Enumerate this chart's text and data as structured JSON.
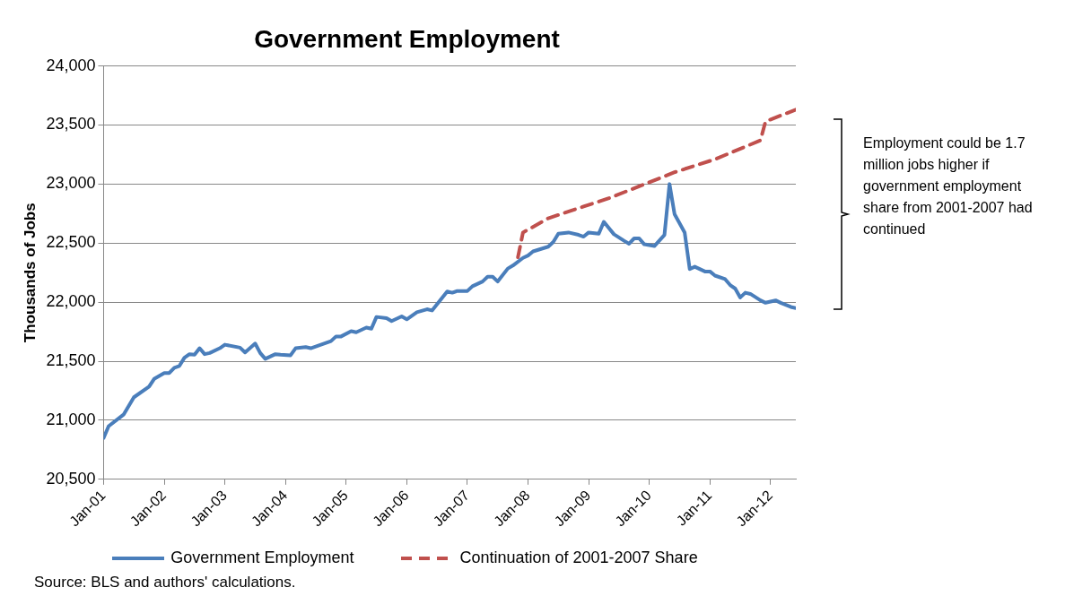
{
  "chart_data": {
    "type": "line",
    "title": "Government Employment",
    "ylabel": "Thousands of Jobs",
    "ylim": [
      20500,
      24000
    ],
    "yticks": [
      {
        "value": 20500,
        "label": "20,500"
      },
      {
        "value": 21000,
        "label": "21,000"
      },
      {
        "value": 21500,
        "label": "21,500"
      },
      {
        "value": 22000,
        "label": "22,000"
      },
      {
        "value": 22500,
        "label": "22,500"
      },
      {
        "value": 23000,
        "label": "23,000"
      },
      {
        "value": 23500,
        "label": "23,500"
      },
      {
        "value": 24000,
        "label": "24,000"
      }
    ],
    "xlim": [
      "2001-01",
      "2012-06"
    ],
    "xticks": [
      {
        "value": "2001-01",
        "label": "Jan-01"
      },
      {
        "value": "2002-01",
        "label": "Jan-02"
      },
      {
        "value": "2003-01",
        "label": "Jan-03"
      },
      {
        "value": "2004-01",
        "label": "Jan-04"
      },
      {
        "value": "2005-01",
        "label": "Jan-05"
      },
      {
        "value": "2006-01",
        "label": "Jan-06"
      },
      {
        "value": "2007-01",
        "label": "Jan-07"
      },
      {
        "value": "2008-01",
        "label": "Jan-08"
      },
      {
        "value": "2009-01",
        "label": "Jan-09"
      },
      {
        "value": "2010-01",
        "label": "Jan-10"
      },
      {
        "value": "2011-01",
        "label": "Jan-11"
      },
      {
        "value": "2012-01",
        "label": "Jan-12"
      }
    ],
    "grid": "y",
    "legend": "bottom",
    "marker": "none",
    "series": [
      {
        "name": "Government Employment",
        "color": "#4a7ebb",
        "line_style": "solid",
        "x": [
          "2001-01",
          "2001-02",
          "2001-05",
          "2001-07",
          "2001-10",
          "2001-11",
          "2002-01",
          "2002-02",
          "2002-03",
          "2002-04",
          "2002-05",
          "2002-06",
          "2002-07",
          "2002-08",
          "2002-09",
          "2002-10",
          "2002-12",
          "2003-01",
          "2003-04",
          "2003-05",
          "2003-07",
          "2003-08",
          "2003-09",
          "2003-11",
          "2003-12",
          "2004-02",
          "2004-03",
          "2004-05",
          "2004-06",
          "2004-08",
          "2004-10",
          "2004-11",
          "2004-12",
          "2005-02",
          "2005-03",
          "2005-05",
          "2005-06",
          "2005-07",
          "2005-09",
          "2005-10",
          "2005-12",
          "2006-01",
          "2006-03",
          "2006-05",
          "2006-06",
          "2006-09",
          "2006-10",
          "2006-11",
          "2007-01",
          "2007-02",
          "2007-04",
          "2007-05",
          "2007-06",
          "2007-07",
          "2007-09",
          "2007-10",
          "2007-12",
          "2008-01",
          "2008-02",
          "2008-05",
          "2008-06",
          "2008-07",
          "2008-09",
          "2008-11",
          "2008-12",
          "2009-01",
          "2009-03",
          "2009-04",
          "2009-06",
          "2009-08",
          "2009-09",
          "2009-10",
          "2009-11",
          "2009-12",
          "2010-02",
          "2010-04",
          "2010-05",
          "2010-06",
          "2010-08",
          "2010-09",
          "2010-10",
          "2010-12",
          "2011-01",
          "2011-02",
          "2011-04",
          "2011-05",
          "2011-06",
          "2011-07",
          "2011-08",
          "2011-09",
          "2011-11",
          "2011-12",
          "2012-02",
          "2012-03",
          "2012-05",
          "2012-06"
        ],
        "values": [
          20850,
          20950,
          21050,
          21195,
          21285,
          21350,
          21400,
          21400,
          21445,
          21460,
          21530,
          21560,
          21555,
          21610,
          21560,
          21570,
          21610,
          21640,
          21615,
          21575,
          21650,
          21570,
          21520,
          21560,
          21555,
          21550,
          21610,
          21620,
          21610,
          21640,
          21670,
          21710,
          21710,
          21755,
          21745,
          21785,
          21775,
          21875,
          21865,
          21840,
          21880,
          21855,
          21915,
          21940,
          21930,
          22090,
          22080,
          22095,
          22095,
          22135,
          22175,
          22215,
          22215,
          22175,
          22285,
          22310,
          22375,
          22395,
          22430,
          22470,
          22510,
          22580,
          22590,
          22570,
          22555,
          22590,
          22580,
          22680,
          22575,
          22520,
          22495,
          22540,
          22540,
          22490,
          22475,
          22570,
          23000,
          22745,
          22590,
          22280,
          22300,
          22260,
          22260,
          22225,
          22195,
          22145,
          22115,
          22040,
          22080,
          22070,
          22015,
          21995,
          22015,
          21995,
          21960,
          21950
        ]
      },
      {
        "name": "Continuation of 2001-2007 Share",
        "color": "#c0504d",
        "line_style": "dashed",
        "x": [
          "2007-11",
          "2007-12",
          "2008-05",
          "2008-12",
          "2009-05",
          "2010-01",
          "2010-06",
          "2011-02",
          "2011-11",
          "2011-12",
          "2012-06"
        ],
        "values": [
          22380,
          22590,
          22710,
          22810,
          22880,
          23015,
          23100,
          23210,
          23370,
          23530,
          23630
        ]
      }
    ],
    "annotations": [
      "Employment could be 1.7 million jobs higher if government employment share from 2001-2007 had continued",
      "Source: BLS and authors' calculations."
    ]
  }
}
